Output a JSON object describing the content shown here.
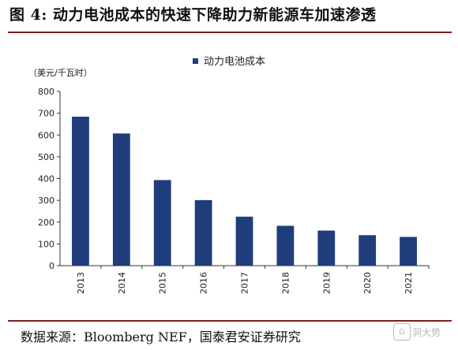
{
  "header": {
    "title": "图 4: 动力电池成本的快速下降助力新能源车加速渗透"
  },
  "footer": {
    "source": "数据来源：Bloomberg NEF，国泰君安证券研究",
    "watermark_text": "洞大势"
  },
  "chart_data": {
    "type": "bar",
    "title": "",
    "ylabel": "（美元/千瓦时）",
    "xlabel": "",
    "categories": [
      "2013",
      "2014",
      "2015",
      "2016",
      "2017",
      "2018",
      "2019",
      "2020",
      "2021"
    ],
    "series": [
      {
        "name": "动力电池成本",
        "values": [
          684,
          607,
          393,
          301,
          225,
          183,
          161,
          140,
          132
        ],
        "color": "#1f3d7a"
      }
    ],
    "ylim": [
      0,
      800
    ],
    "yticks": [
      0,
      100,
      200,
      300,
      400,
      500,
      600,
      700,
      800
    ],
    "grid": false,
    "legend_position": "top-center"
  }
}
